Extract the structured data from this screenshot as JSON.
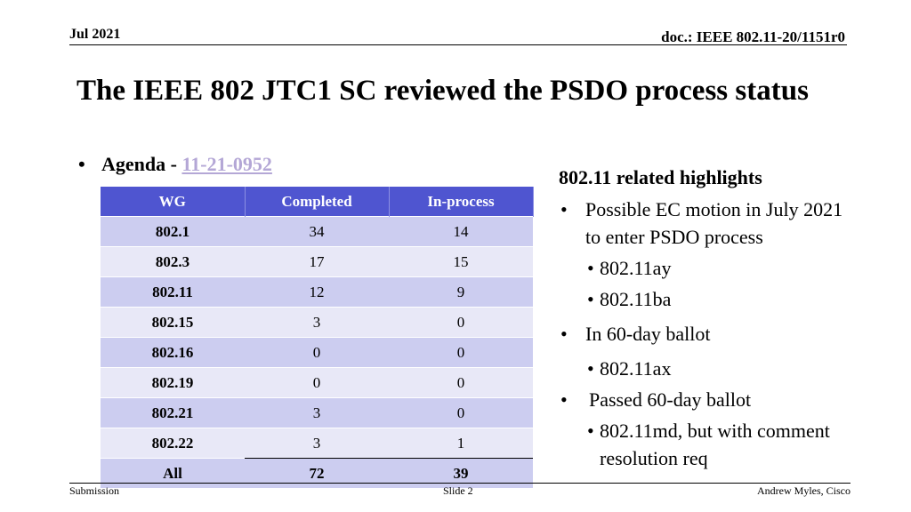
{
  "header": {
    "date": "Jul 2021",
    "doc": "doc.: IEEE 802.11-20/1151r0"
  },
  "title": "The IEEE 802 JTC1 SC reviewed the PSDO process status",
  "agenda": {
    "label": "Agenda - ",
    "link": "11-21-0952"
  },
  "table": {
    "columns": [
      "WG",
      "Completed",
      "In-process"
    ],
    "rows": [
      [
        "802.1",
        "34",
        "14"
      ],
      [
        "802.3",
        "17",
        "15"
      ],
      [
        "802.11",
        "12",
        "9"
      ],
      [
        "802.15",
        "3",
        "0"
      ],
      [
        "802.16",
        "0",
        "0"
      ],
      [
        "802.19",
        "0",
        "0"
      ],
      [
        "802.21",
        "3",
        "0"
      ],
      [
        "802.22",
        "3",
        "1"
      ]
    ],
    "total": [
      "All",
      "72",
      "39"
    ]
  },
  "highlights": {
    "heading": "802.11 related highlights",
    "b1": "Possible EC motion in July 2021 to enter PSDO process",
    "b1_sub1": "802.11ay",
    "b1_sub2": "802.11ba",
    "b2": "In 60-day ballot",
    "b2_sub1": "802.11ax",
    "b3": "Passed 60-day ballot",
    "b3_sub1": "802.11md, but with comment resolution req"
  },
  "footer": {
    "left": "Submission",
    "center": "Slide 2",
    "right": "Andrew Myles, Cisco"
  }
}
